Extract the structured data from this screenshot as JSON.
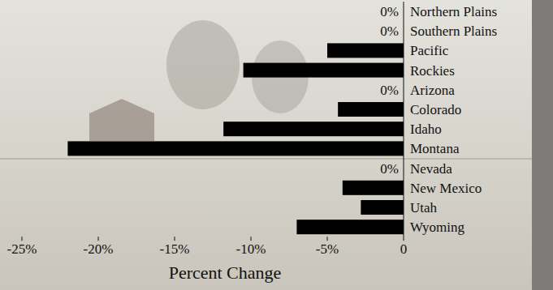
{
  "chart_data": {
    "type": "bar",
    "orientation": "horizontal",
    "categories": [
      "Northern Plains",
      "Southern Plains",
      "Pacific",
      "Rockies",
      "Arizona",
      "Colorado",
      "Idaho",
      "Montana",
      "Nevada",
      "New Mexico",
      "Utah",
      "Wyoming"
    ],
    "values": [
      0,
      0,
      -5,
      -10.5,
      0,
      -4.3,
      -11.8,
      -22,
      0,
      -4,
      -2.8,
      -7
    ],
    "value_labels": [
      "0%",
      "0%",
      null,
      null,
      "0%",
      null,
      null,
      null,
      "0%",
      null,
      null,
      null
    ],
    "color": "#000000",
    "xlabel": "Percent Change",
    "xlim": [
      -25,
      0
    ],
    "xticks": [
      {
        "value": -25,
        "label": "-25%"
      },
      {
        "value": -20,
        "label": "-20%"
      },
      {
        "value": -15,
        "label": "-15%"
      },
      {
        "value": -10,
        "label": "-10%"
      },
      {
        "value": -5,
        "label": "-5%"
      },
      0
    ],
    "grid": false
  }
}
